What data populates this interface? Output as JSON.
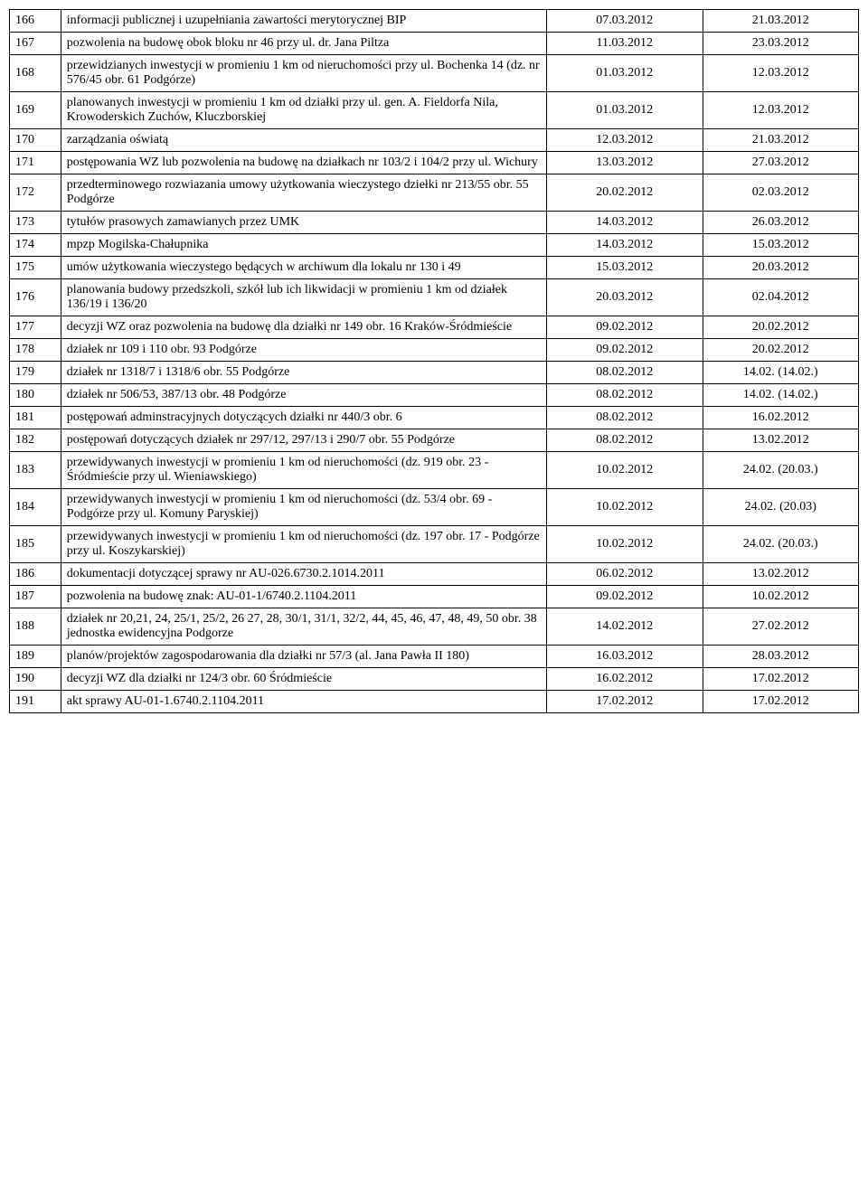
{
  "table": {
    "columns": [
      "num",
      "desc",
      "date1",
      "date2"
    ],
    "col_widths": [
      "5%",
      "59%",
      "18%",
      "18%"
    ],
    "border_color": "#000000",
    "background_color": "#ffffff",
    "text_color": "#000000",
    "font_family": "Times New Roman",
    "font_size_pt": 11,
    "rows": [
      {
        "num": "166",
        "desc": "informacji publicznej i uzupełniania zawartości merytorycznej BIP",
        "date1": "07.03.2012",
        "date2": "21.03.2012"
      },
      {
        "num": "167",
        "desc": "pozwolenia na budowę obok bloku nr 46 przy ul. dr. Jana Piltza",
        "date1": "11.03.2012",
        "date2": "23.03.2012"
      },
      {
        "num": "168",
        "desc": "przewidzianych inwestycji w promieniu 1 km od nieruchomości przy ul. Bochenka 14 (dz. nr 576/45 obr. 61 Podgórze)",
        "date1": "01.03.2012",
        "date2": "12.03.2012"
      },
      {
        "num": "169",
        "desc": "planowanych inwestycji w promieniu 1 km od działki przy ul. gen. A. Fieldorfa Nila, Krowoderskich Zuchów, Kluczborskiej",
        "date1": "01.03.2012",
        "date2": "12.03.2012"
      },
      {
        "num": "170",
        "desc": "zarządzania oświatą",
        "date1": "12.03.2012",
        "date2": "21.03.2012"
      },
      {
        "num": "171",
        "desc": "postępowania WZ lub pozwolenia na budowę na działkach nr 103/2 i 104/2 przy ul. Wichury",
        "date1": "13.03.2012",
        "date2": "27.03.2012"
      },
      {
        "num": "172",
        "desc": "przedterminowego rozwiazania umowy użytkowania wieczystego dziełki nr 213/55 obr. 55 Podgórze",
        "date1": "20.02.2012",
        "date2": "02.03.2012"
      },
      {
        "num": "173",
        "desc": "tytułów prasowych zamawianych przez UMK",
        "date1": "14.03.2012",
        "date2": "26.03.2012"
      },
      {
        "num": "174",
        "desc": "mpzp Mogilska-Chałupnika",
        "date1": "14.03.2012",
        "date2": "15.03.2012"
      },
      {
        "num": "175",
        "desc": "umów użytkowania wieczystego będących w archiwum dla lokalu nr 130 i 49",
        "date1": "15.03.2012",
        "date2": "20.03.2012"
      },
      {
        "num": "176",
        "desc": "planowania budowy przedszkoli, szkół lub ich likwidacji w promieniu 1 km od działek 136/19 i 136/20",
        "date1": "20.03.2012",
        "date2": "02.04.2012"
      },
      {
        "num": "177",
        "desc": "decyzji WZ oraz pozwolenia na budowę dla działki nr 149 obr. 16 Kraków-Śródmieście",
        "date1": "09.02.2012",
        "date2": "20.02.2012"
      },
      {
        "num": "178",
        "desc": "działek nr 109 i 110 obr. 93 Podgórze",
        "date1": "09.02.2012",
        "date2": "20.02.2012"
      },
      {
        "num": "179",
        "desc": "działek nr 1318/7 i 1318/6 obr. 55 Podgórze",
        "date1": "08.02.2012",
        "date2": "14.02. (14.02.)"
      },
      {
        "num": "180",
        "desc": "działek nr 506/53, 387/13 obr. 48 Podgórze",
        "date1": "08.02.2012",
        "date2": "14.02. (14.02.)"
      },
      {
        "num": "181",
        "desc": "postępowań adminstracyjnych dotyczących działki nr 440/3     obr. 6",
        "date1": "08.02.2012",
        "date2": "16.02.2012"
      },
      {
        "num": "182",
        "desc": "postępowań dotyczących działek nr 297/12, 297/13 i 290/7 obr. 55 Podgórze",
        "date1": "08.02.2012",
        "date2": "13.02.2012"
      },
      {
        "num": "183",
        "desc": "przewidywanych inwestycji w promieniu 1 km od nieruchomości (dz. 919 obr. 23 - Śródmieście przy ul. Wieniawskiego)",
        "date1": "10.02.2012",
        "date2": "24.02. (20.03.)"
      },
      {
        "num": "184",
        "desc": "przewidywanych inwestycji w promieniu 1 km od nieruchomości (dz. 53/4 obr. 69 - Podgórze przy ul. Komuny Paryskiej)",
        "date1": "10.02.2012",
        "date2": "24.02. (20.03)"
      },
      {
        "num": "185",
        "desc": "przewidywanych inwestycji w promieniu 1 km od nieruchomości (dz. 197 obr. 17 - Podgórze przy ul. Koszykarskiej)",
        "date1": "10.02.2012",
        "date2": "24.02. (20.03.)"
      },
      {
        "num": "186",
        "desc": "dokumentacji dotyczącej sprawy nr AU-026.6730.2.1014.2011",
        "date1": "06.02.2012",
        "date2": "13.02.2012"
      },
      {
        "num": "187",
        "desc": "pozwolenia na budowę znak: AU-01-1/6740.2.1104.2011",
        "date1": "09.02.2012",
        "date2": "10.02.2012"
      },
      {
        "num": "188",
        "desc": "działek nr 20,21, 24, 25/1, 25/2, 26 27, 28, 30/1, 31/1, 32/2, 44, 45, 46, 47, 48, 49, 50 obr. 38 jednostka ewidencyjna Podgorze",
        "date1": "14.02.2012",
        "date2": "27.02.2012"
      },
      {
        "num": "189",
        "desc": "planów/projektów zagospodarowania dla działki nr 57/3 (al. Jana Pawła II 180)",
        "date1": "16.03.2012",
        "date2": "28.03.2012"
      },
      {
        "num": "190",
        "desc": "decyzji WZ dla działki nr 124/3 obr. 60 Śródmieście",
        "date1": "16.02.2012",
        "date2": "17.02.2012"
      },
      {
        "num": "191",
        "desc": "akt sprawy AU-01-1.6740.2.1104.2011",
        "date1": "17.02.2012",
        "date2": "17.02.2012"
      }
    ]
  }
}
